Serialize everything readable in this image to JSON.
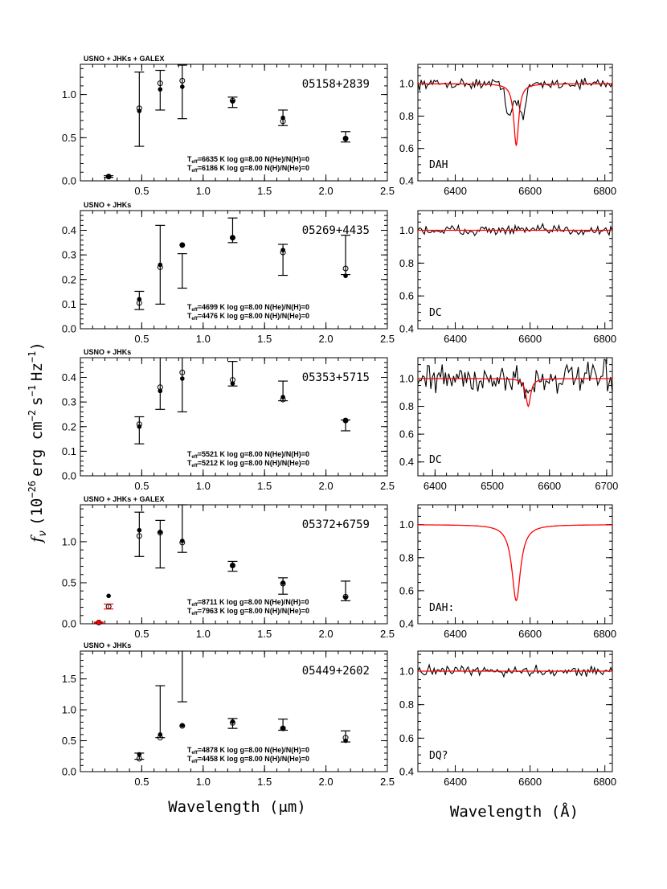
{
  "figure": {
    "y_axis_label": "f",
    "y_axis_label_sub": "ν",
    "y_axis_label_rest": "(10",
    "y_axis_label_exp": "−26",
    "y_axis_label_units": "erg cm",
    "y_axis_label_units_exp1": "−2",
    "y_axis_label_s": "s",
    "y_axis_label_s_exp": "−1",
    "y_axis_label_hz": "Hz",
    "y_axis_label_hz_exp": "−1",
    "y_axis_label_close": ")",
    "x_axis_label_left": "Wavelength (μm)",
    "x_axis_label_right": "Wavelength (Å)",
    "colors": {
      "model_red": "#ff0000",
      "ink": "#000000"
    }
  },
  "chart_data": [
    {
      "type": "scatter",
      "panel": "sed",
      "object": "05158+2839",
      "source_label": "USNO + JHKs + GALEX",
      "xlim": [
        0,
        2.5
      ],
      "ylim": [
        0,
        1.35
      ],
      "xticks": [
        0.5,
        1.0,
        1.5,
        2.0,
        2.5
      ],
      "xticklabels": [
        "0.5",
        "1.0",
        "1.5",
        "2.0",
        "2.5"
      ],
      "yticks": [
        0,
        0.5,
        1.0
      ],
      "yticklabels": [
        "0.0",
        "0.5",
        "1.0"
      ],
      "observed": [
        {
          "x": 0.23,
          "y": 0.05,
          "err": 0.01
        },
        {
          "x": 0.48,
          "y": 0.83,
          "err": 0.43
        },
        {
          "x": 0.65,
          "y": 1.05,
          "err": 0.23
        },
        {
          "x": 0.83,
          "y": 1.03,
          "err": 0.31
        },
        {
          "x": 1.24,
          "y": 0.91,
          "err": 0.06
        },
        {
          "x": 1.65,
          "y": 0.73,
          "err": 0.09
        },
        {
          "x": 2.16,
          "y": 0.51,
          "err": 0.06
        }
      ],
      "model_filled": [
        0.05,
        0.81,
        1.06,
        1.09,
        0.92,
        0.73,
        0.49
      ],
      "model_open": [
        0.05,
        0.84,
        1.13,
        1.16,
        0.93,
        0.69,
        0.49
      ],
      "fits": [
        {
          "text": "T_eff=6635 K   log g=8.00   N(He)/N(H)=0",
          "teff": "6635",
          "color": "red"
        },
        {
          "text": "T_eff=6186 K   log g=8.00   N(H)/N(He)=0",
          "teff": "6186",
          "color": "black"
        }
      ]
    },
    {
      "type": "line",
      "panel": "spectrum",
      "object": "05158+2839",
      "class_label": "DAH",
      "xlim": [
        6300,
        6820
      ],
      "ylim": [
        0.4,
        1.12
      ],
      "xticks": [
        6400,
        6600,
        6800
      ],
      "xticklabels": [
        "6400",
        "6600",
        "6800"
      ],
      "yticks": [
        0.4,
        0.6,
        0.8,
        1.0
      ],
      "yticklabels": [
        "0.4",
        "0.6",
        "0.8",
        "1.0"
      ],
      "line_center": 6563,
      "model_depth": 0.38,
      "model_width": 8,
      "obs_depth": 0.2,
      "obs_width": 22,
      "obs_noise": 0.025,
      "obs_split": true
    },
    {
      "type": "scatter",
      "panel": "sed",
      "object": "05269+4435",
      "source_label": "USNO + JHKs",
      "xlim": [
        0,
        2.5
      ],
      "ylim": [
        0,
        0.48
      ],
      "xticks": [
        0.5,
        1.0,
        1.5,
        2.0,
        2.5
      ],
      "xticklabels": [
        "0.5",
        "1.0",
        "1.5",
        "2.0",
        "2.5"
      ],
      "yticks": [
        0,
        0.1,
        0.2,
        0.3,
        0.4
      ],
      "yticklabels": [
        "0.0",
        "0.1",
        "0.2",
        "0.3",
        "0.4"
      ],
      "observed": [
        {
          "x": 0.48,
          "y": 0.115,
          "err": 0.037
        },
        {
          "x": 0.65,
          "y": 0.26,
          "err": 0.16
        },
        {
          "x": 0.83,
          "y": 0.235,
          "err": 0.07
        },
        {
          "x": 1.24,
          "y": 0.4,
          "err": 0.05
        },
        {
          "x": 1.65,
          "y": 0.28,
          "err": 0.063
        },
        {
          "x": 2.16,
          "y": 0.3,
          "err": 0.08
        }
      ],
      "model_filled": [
        0.12,
        0.26,
        0.34,
        0.37,
        0.32,
        0.215
      ],
      "model_open": [
        0.105,
        0.25,
        0.34,
        0.37,
        0.31,
        0.245
      ],
      "fits": [
        {
          "text": "T_eff=4699 K   log g=8.00   N(He)/N(H)=0",
          "teff": "4699",
          "color": "red"
        },
        {
          "text": "T_eff=4476 K   log g=8.00   N(H)/N(He)=0",
          "teff": "4476",
          "color": "black"
        }
      ]
    },
    {
      "type": "line",
      "panel": "spectrum",
      "object": "05269+4435",
      "class_label": "DC",
      "xlim": [
        6300,
        6820
      ],
      "ylim": [
        0.4,
        1.12
      ],
      "xticks": [
        6400,
        6600,
        6800
      ],
      "xticklabels": [
        "6400",
        "6600",
        "6800"
      ],
      "yticks": [
        0.4,
        0.6,
        0.8,
        1.0
      ],
      "yticklabels": [
        "0.4",
        "0.6",
        "0.8",
        "1.0"
      ],
      "line_center": 6563,
      "model_depth": 0,
      "model_width": 8,
      "obs_depth": 0,
      "obs_width": 10,
      "obs_noise": 0.025,
      "obs_split": false
    },
    {
      "type": "scatter",
      "panel": "sed",
      "object": "05353+5715",
      "source_label": "USNO + JHKs",
      "xlim": [
        0,
        2.5
      ],
      "ylim": [
        0,
        0.48
      ],
      "xticks": [
        0.5,
        1.0,
        1.5,
        2.0,
        2.5
      ],
      "xticklabels": [
        "0.5",
        "1.0",
        "1.5",
        "2.0",
        "2.5"
      ],
      "yticks": [
        0,
        0.1,
        0.2,
        0.3,
        0.4
      ],
      "yticklabels": [
        "0.0",
        "0.1",
        "0.2",
        "0.3",
        "0.4"
      ],
      "observed": [
        {
          "x": 0.48,
          "y": 0.185,
          "err": 0.055
        },
        {
          "x": 0.65,
          "y": 0.415,
          "err": 0.145
        },
        {
          "x": 0.83,
          "y": 0.385,
          "err": 0.125
        },
        {
          "x": 1.24,
          "y": 0.415,
          "err": 0.05
        },
        {
          "x": 1.65,
          "y": 0.345,
          "err": 0.04
        },
        {
          "x": 2.16,
          "y": 0.205,
          "err": 0.022
        }
      ],
      "model_filled": [
        0.2,
        0.345,
        0.395,
        0.375,
        0.32,
        0.225
      ],
      "model_open": [
        0.21,
        0.36,
        0.42,
        0.39,
        0.31,
        0.225
      ],
      "fits": [
        {
          "text": "T_eff=5521 K   log g=8.00   N(He)/N(H)=0",
          "teff": "5521",
          "color": "black"
        },
        {
          "text": "T_eff=5212 K   log g=8.00   N(H)/N(He)=0",
          "teff": "5212",
          "color": "red"
        }
      ]
    },
    {
      "type": "line",
      "panel": "spectrum",
      "object": "05353+5715",
      "class_label": "DC",
      "xlim": [
        6370,
        6710
      ],
      "ylim": [
        0.3,
        1.15
      ],
      "xticks": [
        6400,
        6500,
        6600,
        6700
      ],
      "xticklabels": [
        "6400",
        "6500",
        "6600",
        "6700"
      ],
      "yticks": [
        0.4,
        0.6,
        0.8,
        1.0
      ],
      "yticklabels": [
        "0.4",
        "0.6",
        "0.8",
        "1.0"
      ],
      "line_center": 6563,
      "model_depth": 0.2,
      "model_width": 5,
      "obs_depth": 0.12,
      "obs_width": 6,
      "obs_noise": 0.09,
      "obs_split": false
    },
    {
      "type": "scatter",
      "panel": "sed",
      "object": "05372+6759",
      "source_label": "USNO + JHKs + GALEX",
      "xlim": [
        0,
        2.5
      ],
      "ylim": [
        0,
        1.45
      ],
      "xticks": [
        0.5,
        1.0,
        1.5,
        2.0,
        2.5
      ],
      "xticklabels": [
        "0.5",
        "1.0",
        "1.5",
        "2.0",
        "2.5"
      ],
      "yticks": [
        0,
        0.5,
        1.0
      ],
      "yticklabels": [
        "0.0",
        "0.5",
        "1.0"
      ],
      "observed": [
        {
          "x": 0.15,
          "y": 0.015,
          "err": 0.005,
          "color": "red"
        },
        {
          "x": 0.23,
          "y": 0.21,
          "err": 0.03,
          "color": "red"
        },
        {
          "x": 0.48,
          "y": 1.09,
          "err": 0.27
        },
        {
          "x": 0.65,
          "y": 0.97,
          "err": 0.29
        },
        {
          "x": 0.83,
          "y": 1.16,
          "err": 0.29
        },
        {
          "x": 1.24,
          "y": 0.7,
          "err": 0.06
        },
        {
          "x": 1.65,
          "y": 0.46,
          "err": 0.1
        },
        {
          "x": 2.16,
          "y": 0.4,
          "err": 0.12
        }
      ],
      "model_filled": [
        0.015,
        0.34,
        1.14,
        1.12,
        1.01,
        0.71,
        0.5,
        0.32
      ],
      "model_open": [
        0.015,
        0.21,
        1.07,
        1.11,
        0.99,
        0.71,
        0.49,
        0.33
      ],
      "fits": [
        {
          "text": "T_eff=8711 K   log g=8.00   N(He)/N(H)=0",
          "teff": "8711",
          "color": "red"
        },
        {
          "text": "T_eff=7963 K   log g=8.00   N(H)/N(He)=0",
          "teff": "7963",
          "color": "black"
        }
      ]
    },
    {
      "type": "line",
      "panel": "spectrum",
      "object": "05372+6759",
      "class_label": "DAH:",
      "xlim": [
        6300,
        6820
      ],
      "ylim": [
        0.4,
        1.12
      ],
      "xticks": [
        6400,
        6600,
        6800
      ],
      "xticklabels": [
        "6400",
        "6600",
        "6800"
      ],
      "yticks": [
        0.4,
        0.6,
        0.8,
        1.0
      ],
      "yticklabels": [
        "0.4",
        "0.6",
        "0.8",
        "1.0"
      ],
      "line_center": 6563,
      "model_depth": 0.46,
      "model_width": 14,
      "obs_depth": 0,
      "obs_width": 10,
      "obs_noise": 0,
      "obs_split": false,
      "no_observed": true
    },
    {
      "type": "scatter",
      "panel": "sed",
      "object": "05449+2602",
      "source_label": "USNO + JHKs",
      "xlim": [
        0,
        2.5
      ],
      "ylim": [
        0,
        1.95
      ],
      "xticks": [
        0.5,
        1.0,
        1.5,
        2.0,
        2.5
      ],
      "xticklabels": [
        "0.5",
        "1.0",
        "1.5",
        "2.0",
        "2.5"
      ],
      "yticks": [
        0,
        0.5,
        1.0,
        1.5
      ],
      "yticklabels": [
        "0.0",
        "0.5",
        "1.0",
        "1.5"
      ],
      "observed": [
        {
          "x": 0.48,
          "y": 0.25,
          "err": 0.05
        },
        {
          "x": 0.65,
          "y": 0.97,
          "err": 0.42
        },
        {
          "x": 0.83,
          "y": 1.55,
          "err": 0.42
        },
        {
          "x": 1.24,
          "y": 0.78,
          "err": 0.08
        },
        {
          "x": 1.65,
          "y": 0.76,
          "err": 0.09
        },
        {
          "x": 2.16,
          "y": 0.57,
          "err": 0.09
        }
      ],
      "model_filled": [
        0.28,
        0.6,
        0.75,
        0.81,
        0.7,
        0.5
      ],
      "model_open": [
        0.21,
        0.55,
        0.74,
        0.79,
        0.7,
        0.55
      ],
      "fits": [
        {
          "text": "T_eff=4878 K   log g=8.00   N(He)/N(H)=0",
          "teff": "4878",
          "color": "black"
        },
        {
          "text": "T_eff=4458 K   log g=8.00   N(H)/N(He)=0",
          "teff": "4458",
          "color": "red"
        }
      ]
    },
    {
      "type": "line",
      "panel": "spectrum",
      "object": "05449+2602",
      "class_label": "DQ?",
      "xlim": [
        6300,
        6820
      ],
      "ylim": [
        0.4,
        1.12
      ],
      "xticks": [
        6400,
        6600,
        6800
      ],
      "xticklabels": [
        "6400",
        "6600",
        "6800"
      ],
      "yticks": [
        0.4,
        0.6,
        0.8,
        1.0
      ],
      "yticklabels": [
        "0.4",
        "0.6",
        "0.8",
        "1.0"
      ],
      "line_center": 6563,
      "model_depth": 0,
      "model_width": 8,
      "obs_depth": 0,
      "obs_width": 10,
      "obs_noise": 0.025,
      "obs_split": false
    }
  ]
}
